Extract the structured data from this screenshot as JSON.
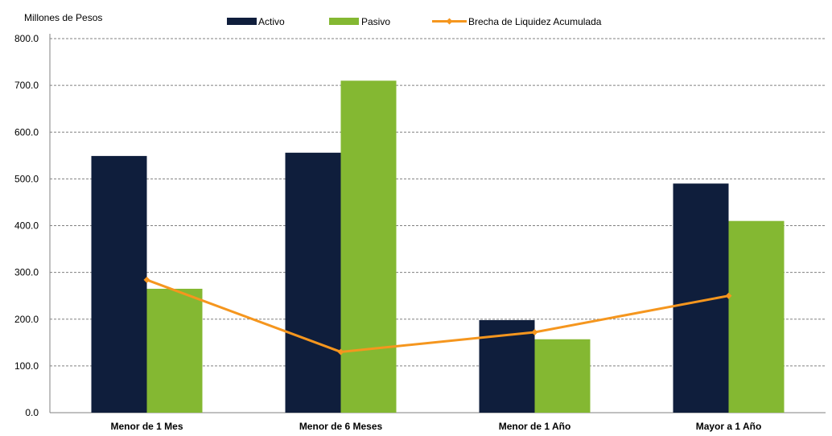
{
  "chart_data": {
    "type": "bar",
    "unit_label": "Millones de Pesos",
    "categories": [
      "Menor de 1 Mes",
      "Menor de 6 Meses",
      "Menor de 1 Año",
      "Mayor a 1 Año"
    ],
    "series": [
      {
        "name": "Activo",
        "type": "bar",
        "color": "#0f1e3c",
        "values": [
          549,
          556,
          198,
          490
        ]
      },
      {
        "name": "Pasivo",
        "type": "bar",
        "color": "#84b832",
        "values": [
          265,
          710,
          157,
          410
        ]
      },
      {
        "name": "Brecha de Liquidez Acumulada",
        "type": "line",
        "color": "#f5961e",
        "values": [
          284,
          130,
          172,
          250
        ]
      }
    ],
    "ylim": [
      0,
      800
    ],
    "yticks": [
      "0.0",
      "100.0",
      "200.0",
      "300.0",
      "400.0",
      "500.0",
      "600.0",
      "700.0",
      "800.0"
    ],
    "grid": true,
    "legend": "top"
  }
}
